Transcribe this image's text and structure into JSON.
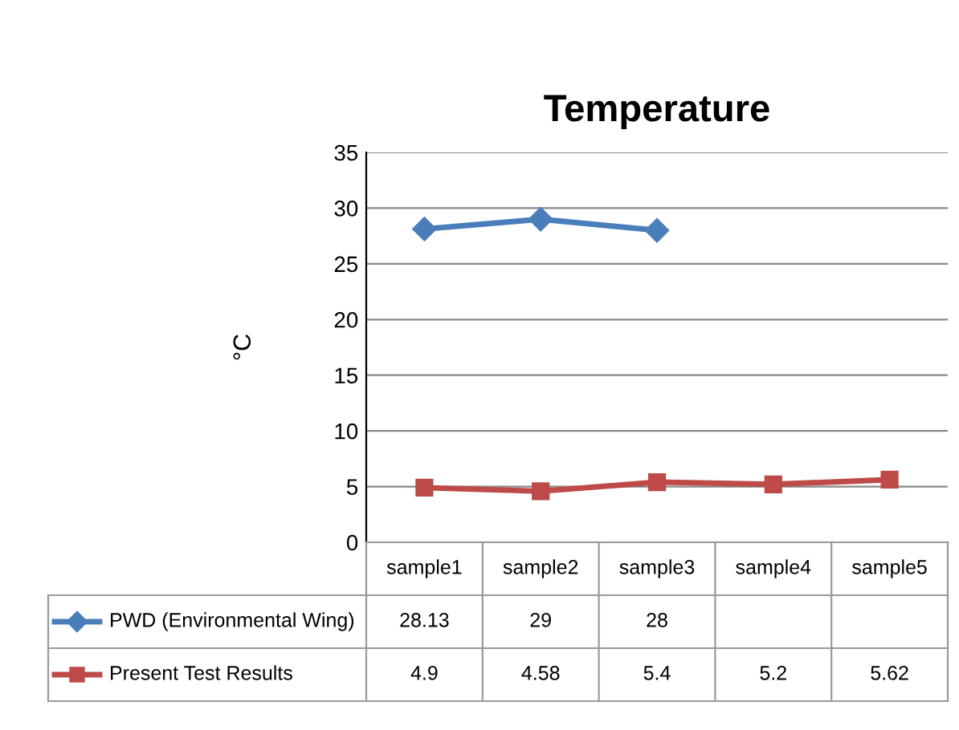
{
  "chart_data": {
    "type": "line",
    "title": "Temperature",
    "ylabel": "°C",
    "categories": [
      "sample1",
      "sample2",
      "sample3",
      "sample4",
      "sample5"
    ],
    "series": [
      {
        "name": "PWD (Environmental Wing)",
        "color": "#4a7ebb",
        "marker": "diamond",
        "values": [
          28.13,
          29,
          28,
          null,
          null
        ]
      },
      {
        "name": "Present Test Results",
        "color": "#be4b48",
        "marker": "square",
        "values": [
          4.9,
          4.58,
          5.4,
          5.2,
          5.62
        ]
      }
    ],
    "ylim": [
      0,
      35
    ],
    "yticks": [
      0,
      5,
      10,
      15,
      20,
      25,
      30,
      35
    ],
    "grid": "y",
    "legend": "bottom",
    "data_labels": true
  }
}
